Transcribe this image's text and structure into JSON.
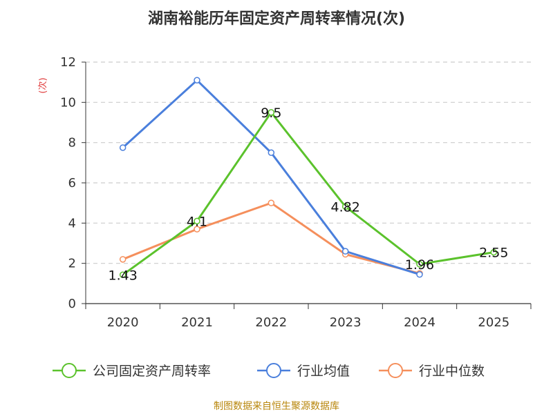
{
  "chart_data": {
    "type": "line",
    "title": "湖南裕能历年固定资产周转率情况(次)",
    "ylabel": "(次)",
    "categories": [
      "2020",
      "2021",
      "2022",
      "2023",
      "2024",
      "2025"
    ],
    "ylim": [
      0,
      12
    ],
    "yticks": [
      0,
      2,
      4,
      6,
      8,
      10,
      12
    ],
    "grid": true,
    "legend_position": "bottom",
    "series": [
      {
        "name": "公司固定资产周转率",
        "color": "#5bc22c",
        "values": [
          1.43,
          4.1,
          9.5,
          4.82,
          1.96,
          2.55
        ],
        "labels": [
          "1.43",
          "4.1",
          "9.5",
          "4.82",
          "1.96",
          "2.55"
        ]
      },
      {
        "name": "行业均值",
        "color": "#4a7fdc",
        "values": [
          7.75,
          11.1,
          7.5,
          2.6,
          1.45,
          null
        ]
      },
      {
        "name": "行业中位数",
        "color": "#f58f5c",
        "values": [
          2.2,
          3.7,
          5.0,
          2.45,
          1.5,
          null
        ]
      }
    ]
  },
  "source": "制图数据来自恒生聚源数据库"
}
